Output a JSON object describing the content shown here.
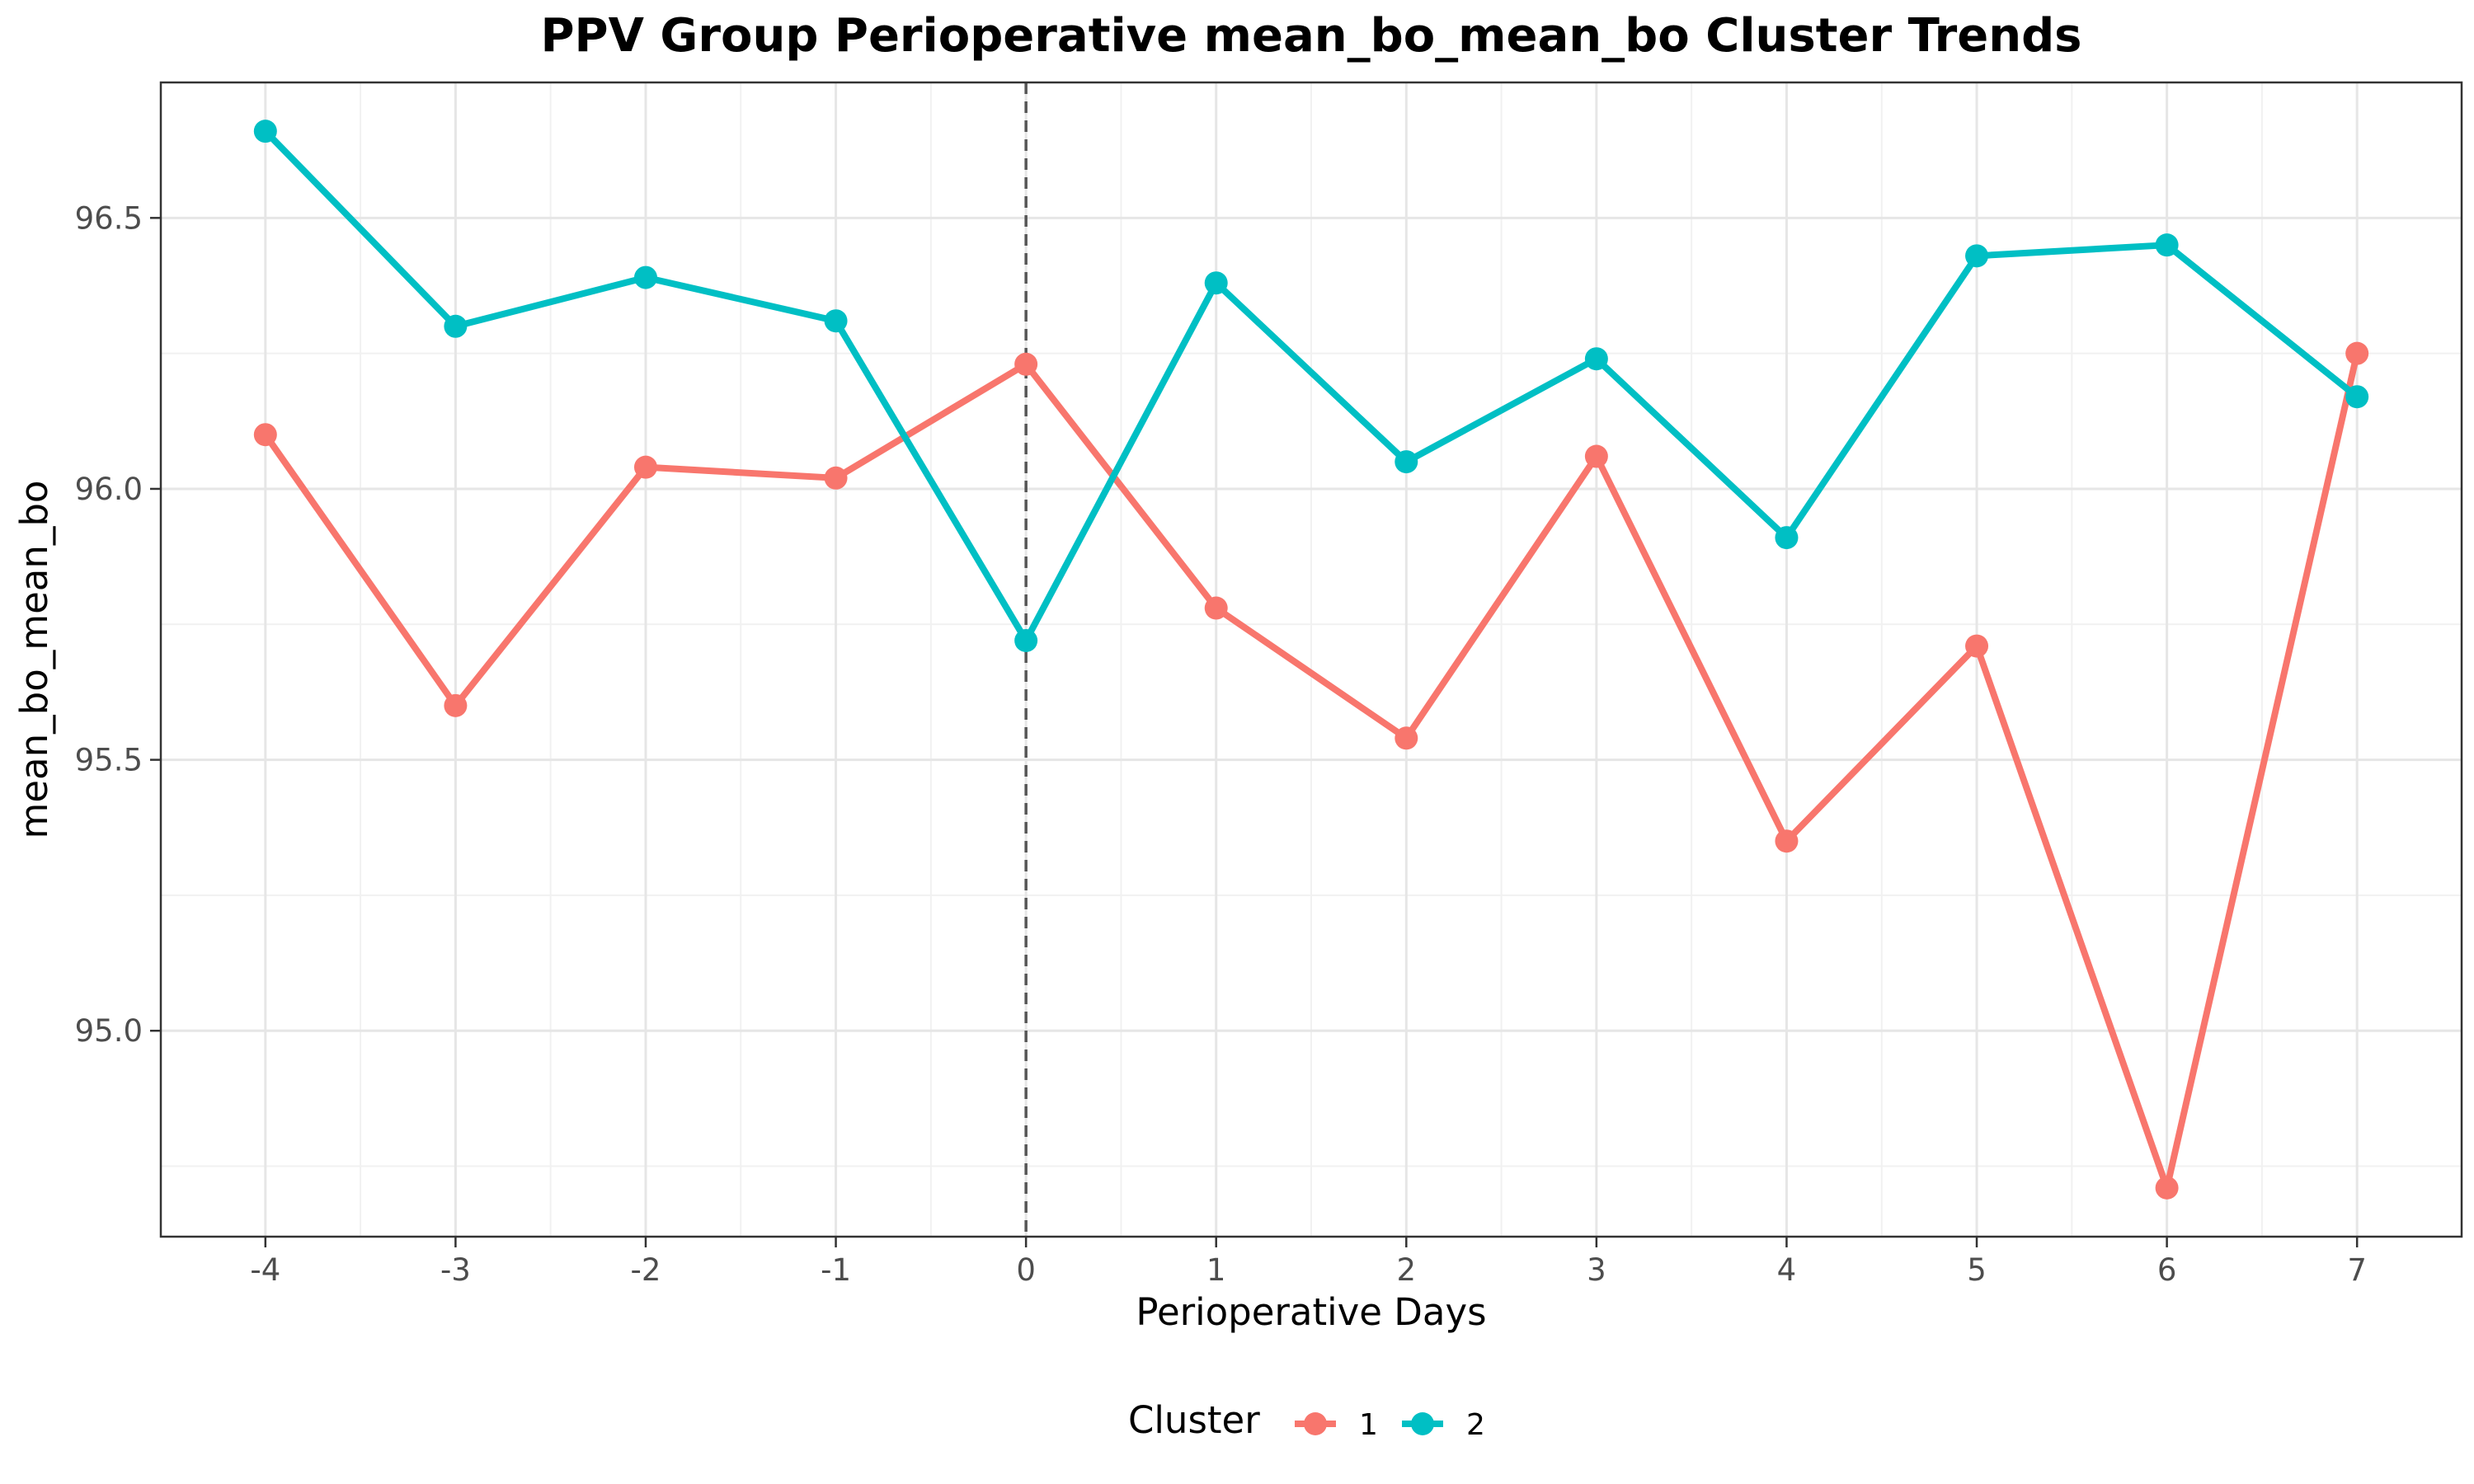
{
  "chart_data": {
    "type": "line",
    "title": "PPV Group Perioperative mean_bo_mean_bo Cluster Trends",
    "xlabel": "Perioperative Days",
    "ylabel": "mean_bo_mean_bo",
    "x": [
      -4,
      -3,
      -2,
      -1,
      0,
      1,
      2,
      3,
      4,
      5,
      6,
      7
    ],
    "x_tick_labels": [
      "-4",
      "-3",
      "-2",
      "-1",
      "0",
      "1",
      "2",
      "3",
      "4",
      "5",
      "6",
      "7"
    ],
    "y_ticks": [
      95.0,
      95.5,
      96.0,
      96.5
    ],
    "y_tick_labels": [
      "95.0",
      "95.5",
      "96.0",
      "96.5"
    ],
    "xlim": [
      -4.55,
      7.55
    ],
    "ylim": [
      94.62,
      96.75
    ],
    "reference_line_x": 0,
    "grid": true,
    "legend": {
      "title": "Cluster",
      "position": "bottom"
    },
    "series": [
      {
        "name": "1",
        "color": "#F8766D",
        "values": [
          96.1,
          95.6,
          96.04,
          96.02,
          96.23,
          95.78,
          95.54,
          96.06,
          95.35,
          95.71,
          94.71,
          96.25
        ]
      },
      {
        "name": "2",
        "color": "#00BFC4",
        "values": [
          96.66,
          96.3,
          96.39,
          96.31,
          95.72,
          96.38,
          96.05,
          96.24,
          95.91,
          96.43,
          96.45,
          96.17
        ]
      }
    ]
  }
}
